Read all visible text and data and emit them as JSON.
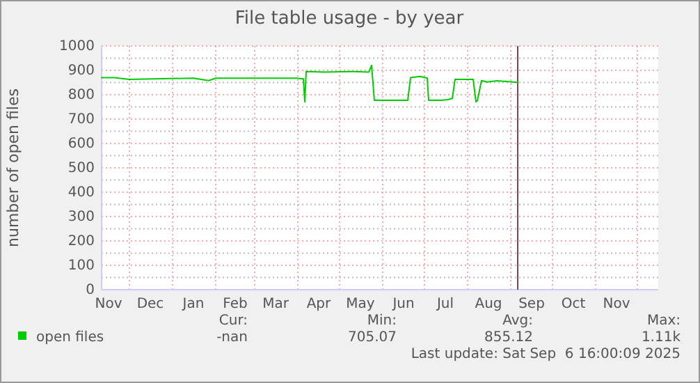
{
  "chart_data": {
    "type": "line",
    "title": "File table usage - by year",
    "ylabel": "number of open files",
    "xlim": [
      "2024-11-11",
      "2025-12-16"
    ],
    "xticks": [
      {
        "value": "2024-11-16",
        "label": "Nov"
      },
      {
        "value": "2024-12-01",
        "label": null
      },
      {
        "value": "2024-12-16",
        "label": "Dec"
      },
      {
        "value": "2025-01-01",
        "label": null
      },
      {
        "value": "2025-01-16",
        "label": "Jan"
      },
      {
        "value": "2025-02-01",
        "label": null
      },
      {
        "value": "2025-02-15",
        "label": "Feb"
      },
      {
        "value": "2025-03-01",
        "label": null
      },
      {
        "value": "2025-03-16",
        "label": "Mar"
      },
      {
        "value": "2025-04-01",
        "label": null
      },
      {
        "value": "2025-04-16",
        "label": "Apr"
      },
      {
        "value": "2025-05-01",
        "label": null
      },
      {
        "value": "2025-05-16",
        "label": "May"
      },
      {
        "value": "2025-06-01",
        "label": null
      },
      {
        "value": "2025-06-16",
        "label": "Jun"
      },
      {
        "value": "2025-07-01",
        "label": null
      },
      {
        "value": "2025-07-16",
        "label": "Jul"
      },
      {
        "value": "2025-08-01",
        "label": null
      },
      {
        "value": "2025-08-16",
        "label": "Aug"
      },
      {
        "value": "2025-09-01",
        "label": null
      },
      {
        "value": "2025-09-16",
        "label": "Sep"
      },
      {
        "value": "2025-10-01",
        "label": null
      },
      {
        "value": "2025-10-16",
        "label": "Oct"
      },
      {
        "value": "2025-11-01",
        "label": null
      },
      {
        "value": "2025-11-16",
        "label": "Nov"
      },
      {
        "value": "2025-12-01",
        "label": null
      }
    ],
    "ylim": [
      0,
      1000
    ],
    "yticks": [
      0,
      {
        "value": 50,
        "label": null
      },
      100,
      {
        "value": 150,
        "label": null
      },
      200,
      {
        "value": 250,
        "label": null
      },
      300,
      {
        "value": 350,
        "label": null
      },
      400,
      {
        "value": 450,
        "label": null
      },
      500,
      {
        "value": 550,
        "label": null
      },
      600,
      {
        "value": 650,
        "label": null
      },
      700,
      {
        "value": 750,
        "label": null
      },
      800,
      {
        "value": 850,
        "label": null
      },
      900,
      {
        "value": 950,
        "label": null
      },
      1000
    ],
    "grid": true,
    "legend": "bottom",
    "marker": "none",
    "line_style": "solid",
    "ref_lines": [
      {
        "axis": "x",
        "value": "2025-09-06",
        "color": "#884444"
      }
    ],
    "series": [
      {
        "name": "open files",
        "color": "#00cc00",
        "x": [
          "2024-11-11",
          "2024-11-20",
          "2024-12-01",
          "2025-01-16",
          "2025-01-27",
          "2025-02-01",
          "2025-03-31",
          "2025-04-05",
          "2025-04-06",
          "2025-04-07",
          "2025-04-20",
          "2025-05-10",
          "2025-05-22",
          "2025-05-24",
          "2025-05-26",
          "2025-06-19",
          "2025-06-21",
          "2025-06-28",
          "2025-07-03",
          "2025-07-04",
          "2025-07-13",
          "2025-07-18",
          "2025-07-21",
          "2025-07-23",
          "2025-08-05",
          "2025-08-07",
          "2025-08-08",
          "2025-08-11",
          "2025-08-15",
          "2025-08-22",
          "2025-09-06"
        ],
        "values": [
          870,
          870,
          863,
          868,
          858,
          868,
          868,
          865,
          771,
          895,
          893,
          895,
          893,
          920,
          777,
          777,
          870,
          875,
          868,
          777,
          777,
          780,
          785,
          863,
          863,
          771,
          775,
          858,
          852,
          857,
          851
        ]
      }
    ],
    "annotations": [
      "Cur:",
      "Min:",
      "Avg:",
      "Max:",
      "-nan",
      "705.07",
      "855.12",
      "1.11k",
      "Last update: Sat Sep  6 16:00:09 2025"
    ]
  }
}
